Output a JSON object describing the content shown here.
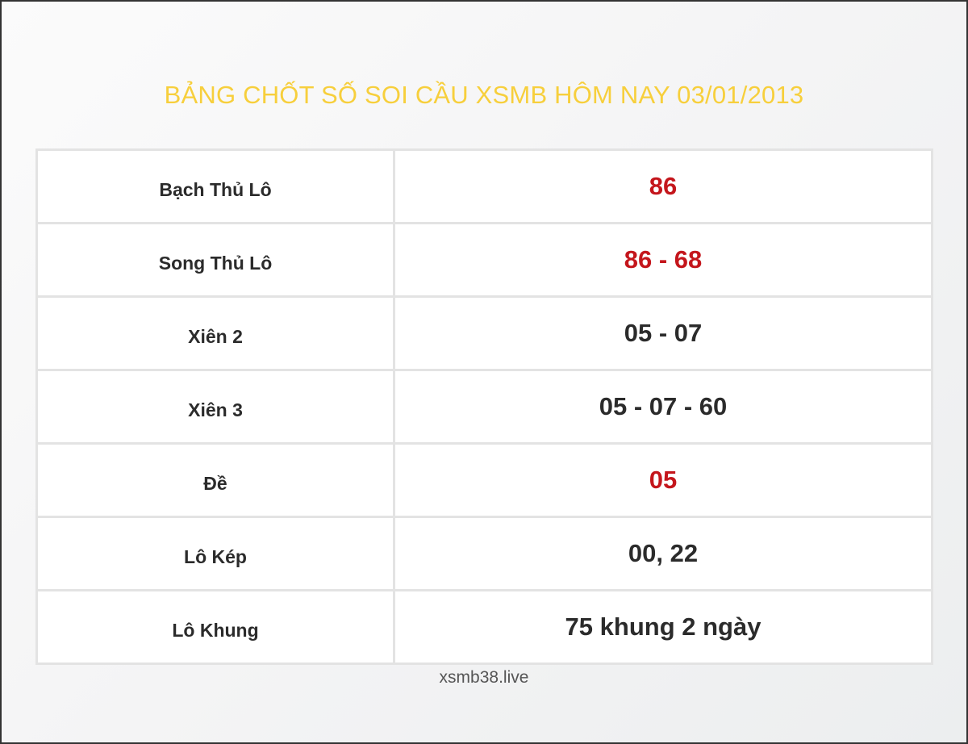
{
  "title": "BẢNG CHỐT SỐ SOI CẦU XSMB HÔM NAY 03/01/2013",
  "accent_color": "#f7cf3c",
  "highlight_color": "#c4161c",
  "rows": [
    {
      "label": "Bạch Thủ Lô",
      "value": "86",
      "highlight": true
    },
    {
      "label": "Song Thủ Lô",
      "value": "86 - 68",
      "highlight": true
    },
    {
      "label": "Xiên 2",
      "value": "05 - 07",
      "highlight": false
    },
    {
      "label": "Xiên 3",
      "value": "05 - 07 - 60",
      "highlight": false
    },
    {
      "label": "Đề",
      "value": "05",
      "highlight": true
    },
    {
      "label": "Lô Kép",
      "value": "00, 22",
      "highlight": false
    },
    {
      "label": "Lô Khung",
      "value": "75 khung 2 ngày",
      "highlight": false
    }
  ],
  "footer": "xsmb38.live"
}
